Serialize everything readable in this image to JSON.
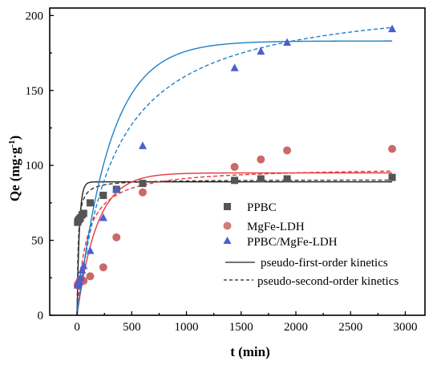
{
  "chart_data": {
    "type": "scatter",
    "xlabel": "t (min)",
    "ylabel_main": "Qe (mg",
    "ylabel_unit_g": "g",
    "ylabel_exp": "-1",
    "ylabel_close": ")",
    "xlim": [
      -250,
      3180
    ],
    "ylim": [
      0,
      205
    ],
    "xticks": [
      0,
      500,
      1000,
      1500,
      2000,
      2500,
      3000
    ],
    "yticks": [
      0,
      50,
      100,
      150,
      200
    ],
    "legend_position": "center-right",
    "series": [
      {
        "name": "PPBC",
        "color": "#555555",
        "marker": "square",
        "x": [
          5,
          10,
          20,
          30,
          45,
          60,
          120,
          240,
          360,
          600,
          1440,
          1680,
          1920,
          2880
        ],
        "y": [
          62,
          63,
          64,
          65,
          67,
          68,
          75,
          80,
          84,
          88,
          90,
          91,
          91,
          92
        ]
      },
      {
        "name": "MgFe-LDH",
        "color": "#c0504d",
        "marker": "circle",
        "x": [
          5,
          10,
          20,
          30,
          60,
          120,
          240,
          360,
          600,
          1440,
          1680,
          1920,
          2880
        ],
        "y": [
          20,
          21,
          22,
          24,
          23,
          26,
          32,
          52,
          82,
          99,
          104,
          110,
          111
        ]
      },
      {
        "name": "PPBC/MgFe-LDH",
        "color": "#4a5fd0",
        "marker": "triangle",
        "x": [
          5,
          10,
          20,
          30,
          45,
          60,
          120,
          240,
          360,
          600,
          1440,
          1680,
          1920,
          2880
        ],
        "y": [
          20,
          21,
          22,
          25,
          30,
          33,
          43,
          65,
          84,
          113,
          165,
          176,
          182,
          191
        ]
      }
    ],
    "fits": [
      {
        "model": "pfo",
        "color": "#222222",
        "qe": 89,
        "k": 0.048
      },
      {
        "model": "pso",
        "color": "#333333",
        "qe": 90.5,
        "k": 0.0011
      },
      {
        "model": "pfo",
        "color": "#e8383d",
        "qe": 95,
        "k": 0.0055
      },
      {
        "model": "pso",
        "color": "#e8383d",
        "qe": 99,
        "k": 0.00012
      },
      {
        "model": "pfo",
        "color": "#1f7fc8",
        "qe": 183,
        "k": 0.0033
      },
      {
        "model": "pso",
        "color": "#1f7fc8",
        "qe": 215,
        "k": 1.35e-05
      }
    ],
    "legend_lines": [
      {
        "label": "pseudo-first-order kinetics",
        "style": "solid"
      },
      {
        "label": "pseudo-second-order kinetics",
        "style": "dashed"
      }
    ]
  }
}
